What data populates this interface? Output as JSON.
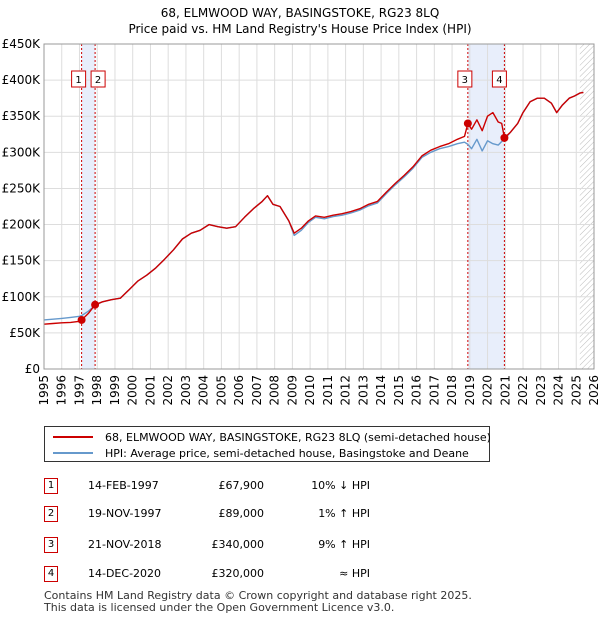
{
  "chart_data": {
    "type": "line",
    "title": "68, ELMWOOD WAY, BASINGSTOKE, RG23 8LQ",
    "subtitle": "Price paid vs. HM Land Registry's House Price Index (HPI)",
    "xlabel": "",
    "ylabel": "",
    "xlim": [
      1995,
      2026
    ],
    "ylim": [
      0,
      450000
    ],
    "x_ticks": [
      "1995",
      "1996",
      "1997",
      "1998",
      "1999",
      "2000",
      "2001",
      "2002",
      "2003",
      "2004",
      "2005",
      "2006",
      "2007",
      "2008",
      "2009",
      "2010",
      "2011",
      "2012",
      "2013",
      "2014",
      "2015",
      "2016",
      "2017",
      "2018",
      "2019",
      "2020",
      "2021",
      "2022",
      "2023",
      "2024",
      "2025",
      "2026"
    ],
    "y_ticks": [
      {
        "value": 0,
        "label": "£0"
      },
      {
        "value": 50000,
        "label": "£50K"
      },
      {
        "value": 100000,
        "label": "£100K"
      },
      {
        "value": 150000,
        "label": "£150K"
      },
      {
        "value": 200000,
        "label": "£200K"
      },
      {
        "value": 250000,
        "label": "£250K"
      },
      {
        "value": 300000,
        "label": "£300K"
      },
      {
        "value": 350000,
        "label": "£350K"
      },
      {
        "value": 400000,
        "label": "£400K"
      },
      {
        "value": 450000,
        "label": "£450K"
      }
    ],
    "grid": true,
    "shaded_periods": [
      [
        1997.12,
        1997.88
      ],
      [
        2018.89,
        2020.95
      ]
    ],
    "future_hatch_from": 2025.2,
    "series": [
      {
        "name": "68, ELMWOOD WAY, BASINGSTOKE, RG23 8LQ (semi-detached house)",
        "color": "#cc0000",
        "points": [
          [
            1995.0,
            62000
          ],
          [
            1995.5,
            63000
          ],
          [
            1996.0,
            64000
          ],
          [
            1996.5,
            64500
          ],
          [
            1997.0,
            66000
          ],
          [
            1997.12,
            67900
          ],
          [
            1997.5,
            77000
          ],
          [
            1997.88,
            89000
          ],
          [
            1998.3,
            93000
          ],
          [
            1998.8,
            96000
          ],
          [
            1999.3,
            98000
          ],
          [
            1999.8,
            110000
          ],
          [
            2000.3,
            122000
          ],
          [
            2000.8,
            130000
          ],
          [
            2001.3,
            140000
          ],
          [
            2001.8,
            152000
          ],
          [
            2002.3,
            165000
          ],
          [
            2002.8,
            180000
          ],
          [
            2003.3,
            188000
          ],
          [
            2003.8,
            192000
          ],
          [
            2004.3,
            200000
          ],
          [
            2004.8,
            197000
          ],
          [
            2005.3,
            195000
          ],
          [
            2005.8,
            197000
          ],
          [
            2006.3,
            210000
          ],
          [
            2006.8,
            222000
          ],
          [
            2007.3,
            232000
          ],
          [
            2007.6,
            240000
          ],
          [
            2007.9,
            228000
          ],
          [
            2008.3,
            225000
          ],
          [
            2008.8,
            205000
          ],
          [
            2009.1,
            188000
          ],
          [
            2009.5,
            195000
          ],
          [
            2009.9,
            205000
          ],
          [
            2010.3,
            212000
          ],
          [
            2010.8,
            210000
          ],
          [
            2011.3,
            213000
          ],
          [
            2011.8,
            215000
          ],
          [
            2012.3,
            218000
          ],
          [
            2012.8,
            222000
          ],
          [
            2013.3,
            228000
          ],
          [
            2013.8,
            232000
          ],
          [
            2014.3,
            245000
          ],
          [
            2014.8,
            257000
          ],
          [
            2015.3,
            268000
          ],
          [
            2015.8,
            280000
          ],
          [
            2016.3,
            295000
          ],
          [
            2016.8,
            303000
          ],
          [
            2017.3,
            308000
          ],
          [
            2017.8,
            312000
          ],
          [
            2018.3,
            318000
          ],
          [
            2018.7,
            322000
          ],
          [
            2018.89,
            340000
          ],
          [
            2019.1,
            332000
          ],
          [
            2019.4,
            345000
          ],
          [
            2019.7,
            330000
          ],
          [
            2020.0,
            350000
          ],
          [
            2020.3,
            355000
          ],
          [
            2020.6,
            342000
          ],
          [
            2020.8,
            340000
          ],
          [
            2020.95,
            320000
          ],
          [
            2021.3,
            328000
          ],
          [
            2021.7,
            340000
          ],
          [
            2022.0,
            355000
          ],
          [
            2022.4,
            370000
          ],
          [
            2022.8,
            375000
          ],
          [
            2023.2,
            375000
          ],
          [
            2023.6,
            368000
          ],
          [
            2023.9,
            355000
          ],
          [
            2024.2,
            365000
          ],
          [
            2024.6,
            375000
          ],
          [
            2024.9,
            378000
          ],
          [
            2025.2,
            382000
          ],
          [
            2025.4,
            383000
          ]
        ]
      },
      {
        "name": "HPI: Average price, semi-detached house, Basingstoke and Deane",
        "color": "#6699cc",
        "points": [
          [
            1995.0,
            68000
          ],
          [
            1995.5,
            69000
          ],
          [
            1996.0,
            70000
          ],
          [
            1996.5,
            71500
          ],
          [
            1997.0,
            73000
          ],
          [
            1997.12,
            74000
          ],
          [
            1997.5,
            80000
          ],
          [
            1997.88,
            88000
          ],
          [
            1998.3,
            93000
          ],
          [
            1998.8,
            96000
          ],
          [
            1999.3,
            98000
          ],
          [
            1999.8,
            110000
          ],
          [
            2000.3,
            122000
          ],
          [
            2000.8,
            130000
          ],
          [
            2001.3,
            140000
          ],
          [
            2001.8,
            152000
          ],
          [
            2002.3,
            165000
          ],
          [
            2002.8,
            180000
          ],
          [
            2003.3,
            188000
          ],
          [
            2003.8,
            192000
          ],
          [
            2004.3,
            200000
          ],
          [
            2004.8,
            197000
          ],
          [
            2005.3,
            195000
          ],
          [
            2005.8,
            197000
          ],
          [
            2006.3,
            210000
          ],
          [
            2006.8,
            222000
          ],
          [
            2007.3,
            232000
          ],
          [
            2007.6,
            240000
          ],
          [
            2007.9,
            228000
          ],
          [
            2008.3,
            225000
          ],
          [
            2008.8,
            205000
          ],
          [
            2009.1,
            185000
          ],
          [
            2009.5,
            192000
          ],
          [
            2009.9,
            203000
          ],
          [
            2010.3,
            210000
          ],
          [
            2010.8,
            208000
          ],
          [
            2011.3,
            211000
          ],
          [
            2011.8,
            213000
          ],
          [
            2012.3,
            216000
          ],
          [
            2012.8,
            220000
          ],
          [
            2013.3,
            226000
          ],
          [
            2013.8,
            230000
          ],
          [
            2014.3,
            243000
          ],
          [
            2014.8,
            255000
          ],
          [
            2015.3,
            266000
          ],
          [
            2015.8,
            278000
          ],
          [
            2016.3,
            293000
          ],
          [
            2016.8,
            300000
          ],
          [
            2017.3,
            305000
          ],
          [
            2017.8,
            308000
          ],
          [
            2018.3,
            312000
          ],
          [
            2018.7,
            314000
          ],
          [
            2018.89,
            311000
          ],
          [
            2019.1,
            305000
          ],
          [
            2019.4,
            318000
          ],
          [
            2019.7,
            302000
          ],
          [
            2020.0,
            316000
          ],
          [
            2020.3,
            312000
          ],
          [
            2020.6,
            310000
          ],
          [
            2020.8,
            315000
          ],
          [
            2020.95,
            318000
          ],
          [
            2021.3,
            328000
          ],
          [
            2021.7,
            340000
          ],
          [
            2022.0,
            355000
          ],
          [
            2022.4,
            370000
          ],
          [
            2022.8,
            375000
          ],
          [
            2023.2,
            375000
          ],
          [
            2023.6,
            368000
          ],
          [
            2023.9,
            355000
          ],
          [
            2024.2,
            365000
          ],
          [
            2024.6,
            375000
          ],
          [
            2024.9,
            378000
          ],
          [
            2025.2,
            382000
          ],
          [
            2025.4,
            383000
          ]
        ]
      }
    ],
    "sale_markers": [
      {
        "label": "1",
        "x": 1997.12,
        "y": 67900
      },
      {
        "label": "2",
        "x": 1997.88,
        "y": 89000
      },
      {
        "label": "3",
        "x": 2018.89,
        "y": 340000
      },
      {
        "label": "4",
        "x": 2020.95,
        "y": 320000
      }
    ]
  },
  "legend": {
    "property_label": "68, ELMWOOD WAY, BASINGSTOKE, RG23 8LQ (semi-detached house)",
    "hpi_label": "HPI: Average price, semi-detached house, Basingstoke and Deane"
  },
  "sales": [
    {
      "num": "1",
      "date": "14-FEB-1997",
      "price": "£67,900",
      "hpi": "10% ↓ HPI"
    },
    {
      "num": "2",
      "date": "19-NOV-1997",
      "price": "£89,000",
      "hpi": "1% ↑ HPI"
    },
    {
      "num": "3",
      "date": "21-NOV-2018",
      "price": "£340,000",
      "hpi": "9% ↑ HPI"
    },
    {
      "num": "4",
      "date": "14-DEC-2020",
      "price": "£320,000",
      "hpi": "≈ HPI"
    }
  ],
  "footer": {
    "line1": "Contains HM Land Registry data © Crown copyright and database right 2025.",
    "line2": "This data is licensed under the Open Government Licence v3.0."
  }
}
